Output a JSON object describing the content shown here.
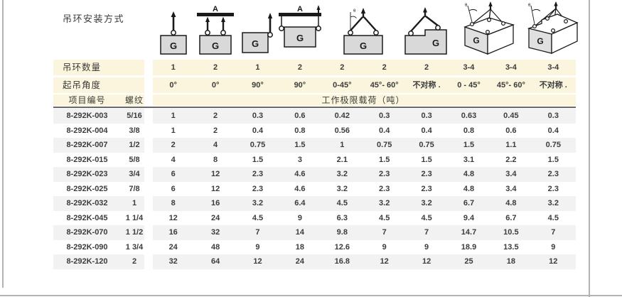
{
  "page": {
    "title": "吊环安装方式"
  },
  "colors": {
    "header_band": "#faf5dc",
    "row_stripe": "#f2f2f2",
    "header_rule": "#6a6a6a",
    "page_frame": "#b3b3b3",
    "diagram_box_fill": "#d9d9d9",
    "text": "#3c3c3c"
  },
  "diagrams": {
    "g_label": "G",
    "bar_label": "A",
    "angle_label": "θ"
  },
  "header": {
    "qty_label": "吊环数量",
    "angle_label": "起吊角度",
    "item_label": "项目编号",
    "thread_label": "螺纹",
    "load_label": "工作极限载荷（吨）",
    "quantities": [
      "1",
      "2",
      "1",
      "2",
      "2",
      "2",
      "2",
      "3-4",
      "3-4",
      "3-4"
    ],
    "angles": [
      "0°",
      "0°",
      "90°",
      "90°",
      "0-45°",
      "45°- 60°",
      "不对称 .",
      "0 - 45°",
      "45°- 60°",
      "不对称 ."
    ]
  },
  "table": {
    "rows": [
      {
        "item": "8-292K-003",
        "thread": "5/16",
        "values": [
          "1",
          "2",
          "0.3",
          "0.6",
          "0.42",
          "0.3",
          "0.3",
          "0.63",
          "0.45",
          "0.3"
        ]
      },
      {
        "item": "8-292K-004",
        "thread": "3/8",
        "values": [
          "1",
          "2",
          "0.4",
          "0.8",
          "0.56",
          "0.4",
          "0.4",
          "0.8",
          "0.6",
          "0.4"
        ]
      },
      {
        "item": "8-292K-007",
        "thread": "1/2",
        "values": [
          "2",
          "4",
          "0.75",
          "1.5",
          "1",
          "0.75",
          "0.75",
          "1.5",
          "1.1",
          "0.75"
        ]
      },
      {
        "item": "8-292K-015",
        "thread": "5/8",
        "values": [
          "4",
          "8",
          "1.5",
          "3",
          "2.1",
          "1.5",
          "1.5",
          "3.1",
          "2.2",
          "1.5"
        ]
      },
      {
        "item": "8-292K-023",
        "thread": "3/4",
        "values": [
          "6",
          "12",
          "2.3",
          "4.6",
          "3.2",
          "2.3",
          "2.3",
          "4.8",
          "3.4",
          "2.3"
        ]
      },
      {
        "item": "8-292K-025",
        "thread": "7/8",
        "values": [
          "6",
          "12",
          "2.3",
          "4.6",
          "3.2",
          "2.3",
          "2.3",
          "4.8",
          "3.4",
          "2.3"
        ]
      },
      {
        "item": "8-292K-032",
        "thread": "1",
        "values": [
          "8",
          "16",
          "3.2",
          "6.4",
          "4.5",
          "3.2",
          "3.2",
          "6.7",
          "4.8",
          "3.2"
        ]
      },
      {
        "item": "8-292K-045",
        "thread": "1 1/4",
        "values": [
          "12",
          "24",
          "4.5",
          "9",
          "6.3",
          "4.5",
          "4.5",
          "9.4",
          "6.7",
          "4.5"
        ]
      },
      {
        "item": "8-292K-070",
        "thread": "1 1/2",
        "values": [
          "16",
          "32",
          "7",
          "14",
          "9.8",
          "7",
          "7",
          "14.7",
          "10.5",
          "7"
        ]
      },
      {
        "item": "8-292K-090",
        "thread": "1 3/4",
        "values": [
          "24",
          "48",
          "9",
          "18",
          "12.6",
          "9",
          "9",
          "18.9",
          "13.5",
          "9"
        ]
      },
      {
        "item": "8-292K-120",
        "thread": "2",
        "values": [
          "32",
          "64",
          "12",
          "24",
          "16.8",
          "12",
          "12",
          "25",
          "18",
          "12"
        ]
      }
    ]
  }
}
